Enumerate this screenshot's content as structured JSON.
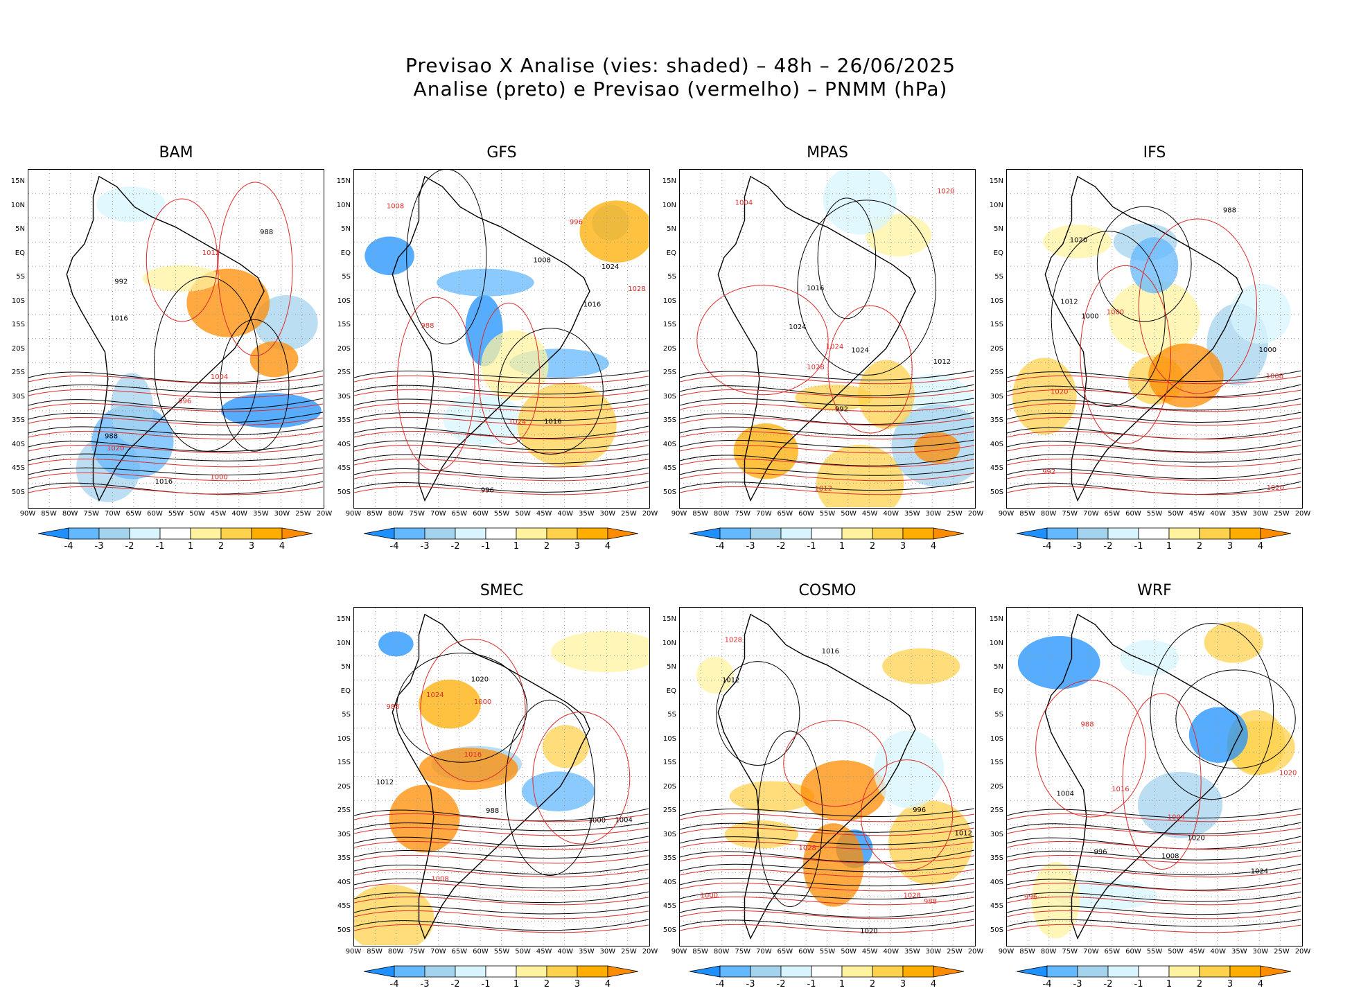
{
  "figure": {
    "title_line1": "Previsao X Analise (vies: shaded) – 48h – 26/06/2025",
    "title_line2": "Analise (preto) e Previsao (vermelho) – PNMM (hPa)"
  },
  "panels": [
    {
      "name": "BAM"
    },
    {
      "name": "GFS"
    },
    {
      "name": "MPAS"
    },
    {
      "name": "IFS"
    },
    {
      "name": "SMEC"
    },
    {
      "name": "COSMO"
    },
    {
      "name": "WRF"
    }
  ],
  "lat_ticks": [
    "15N",
    "10N",
    "5N",
    "EQ",
    "5S",
    "10S",
    "15S",
    "20S",
    "25S",
    "30S",
    "35S",
    "40S",
    "45S",
    "50S"
  ],
  "lon_ticks": [
    "90W",
    "85W",
    "80W",
    "75W",
    "70W",
    "65W",
    "60W",
    "55W",
    "50W",
    "45W",
    "40W",
    "35W",
    "30W",
    "25W",
    "20W"
  ],
  "colorbar": {
    "labels": [
      "-4",
      "-3",
      "-2",
      "-1",
      "1",
      "2",
      "3",
      "4"
    ],
    "colors": [
      "#1e90ff",
      "#63b8ff",
      "#a4d3ee",
      "#d8f5ff",
      "#ffffff",
      "#fff3a0",
      "#ffd24d",
      "#ffae00",
      "#ff8c00"
    ]
  },
  "contour_colors": {
    "analysis": "#000000",
    "forecast": "#dc2a2a"
  },
  "contour_labels": [
    "1016",
    "1012",
    "1020",
    "1024",
    "1008",
    "1004",
    "1000",
    "996",
    "992",
    "988",
    "1028"
  ]
}
